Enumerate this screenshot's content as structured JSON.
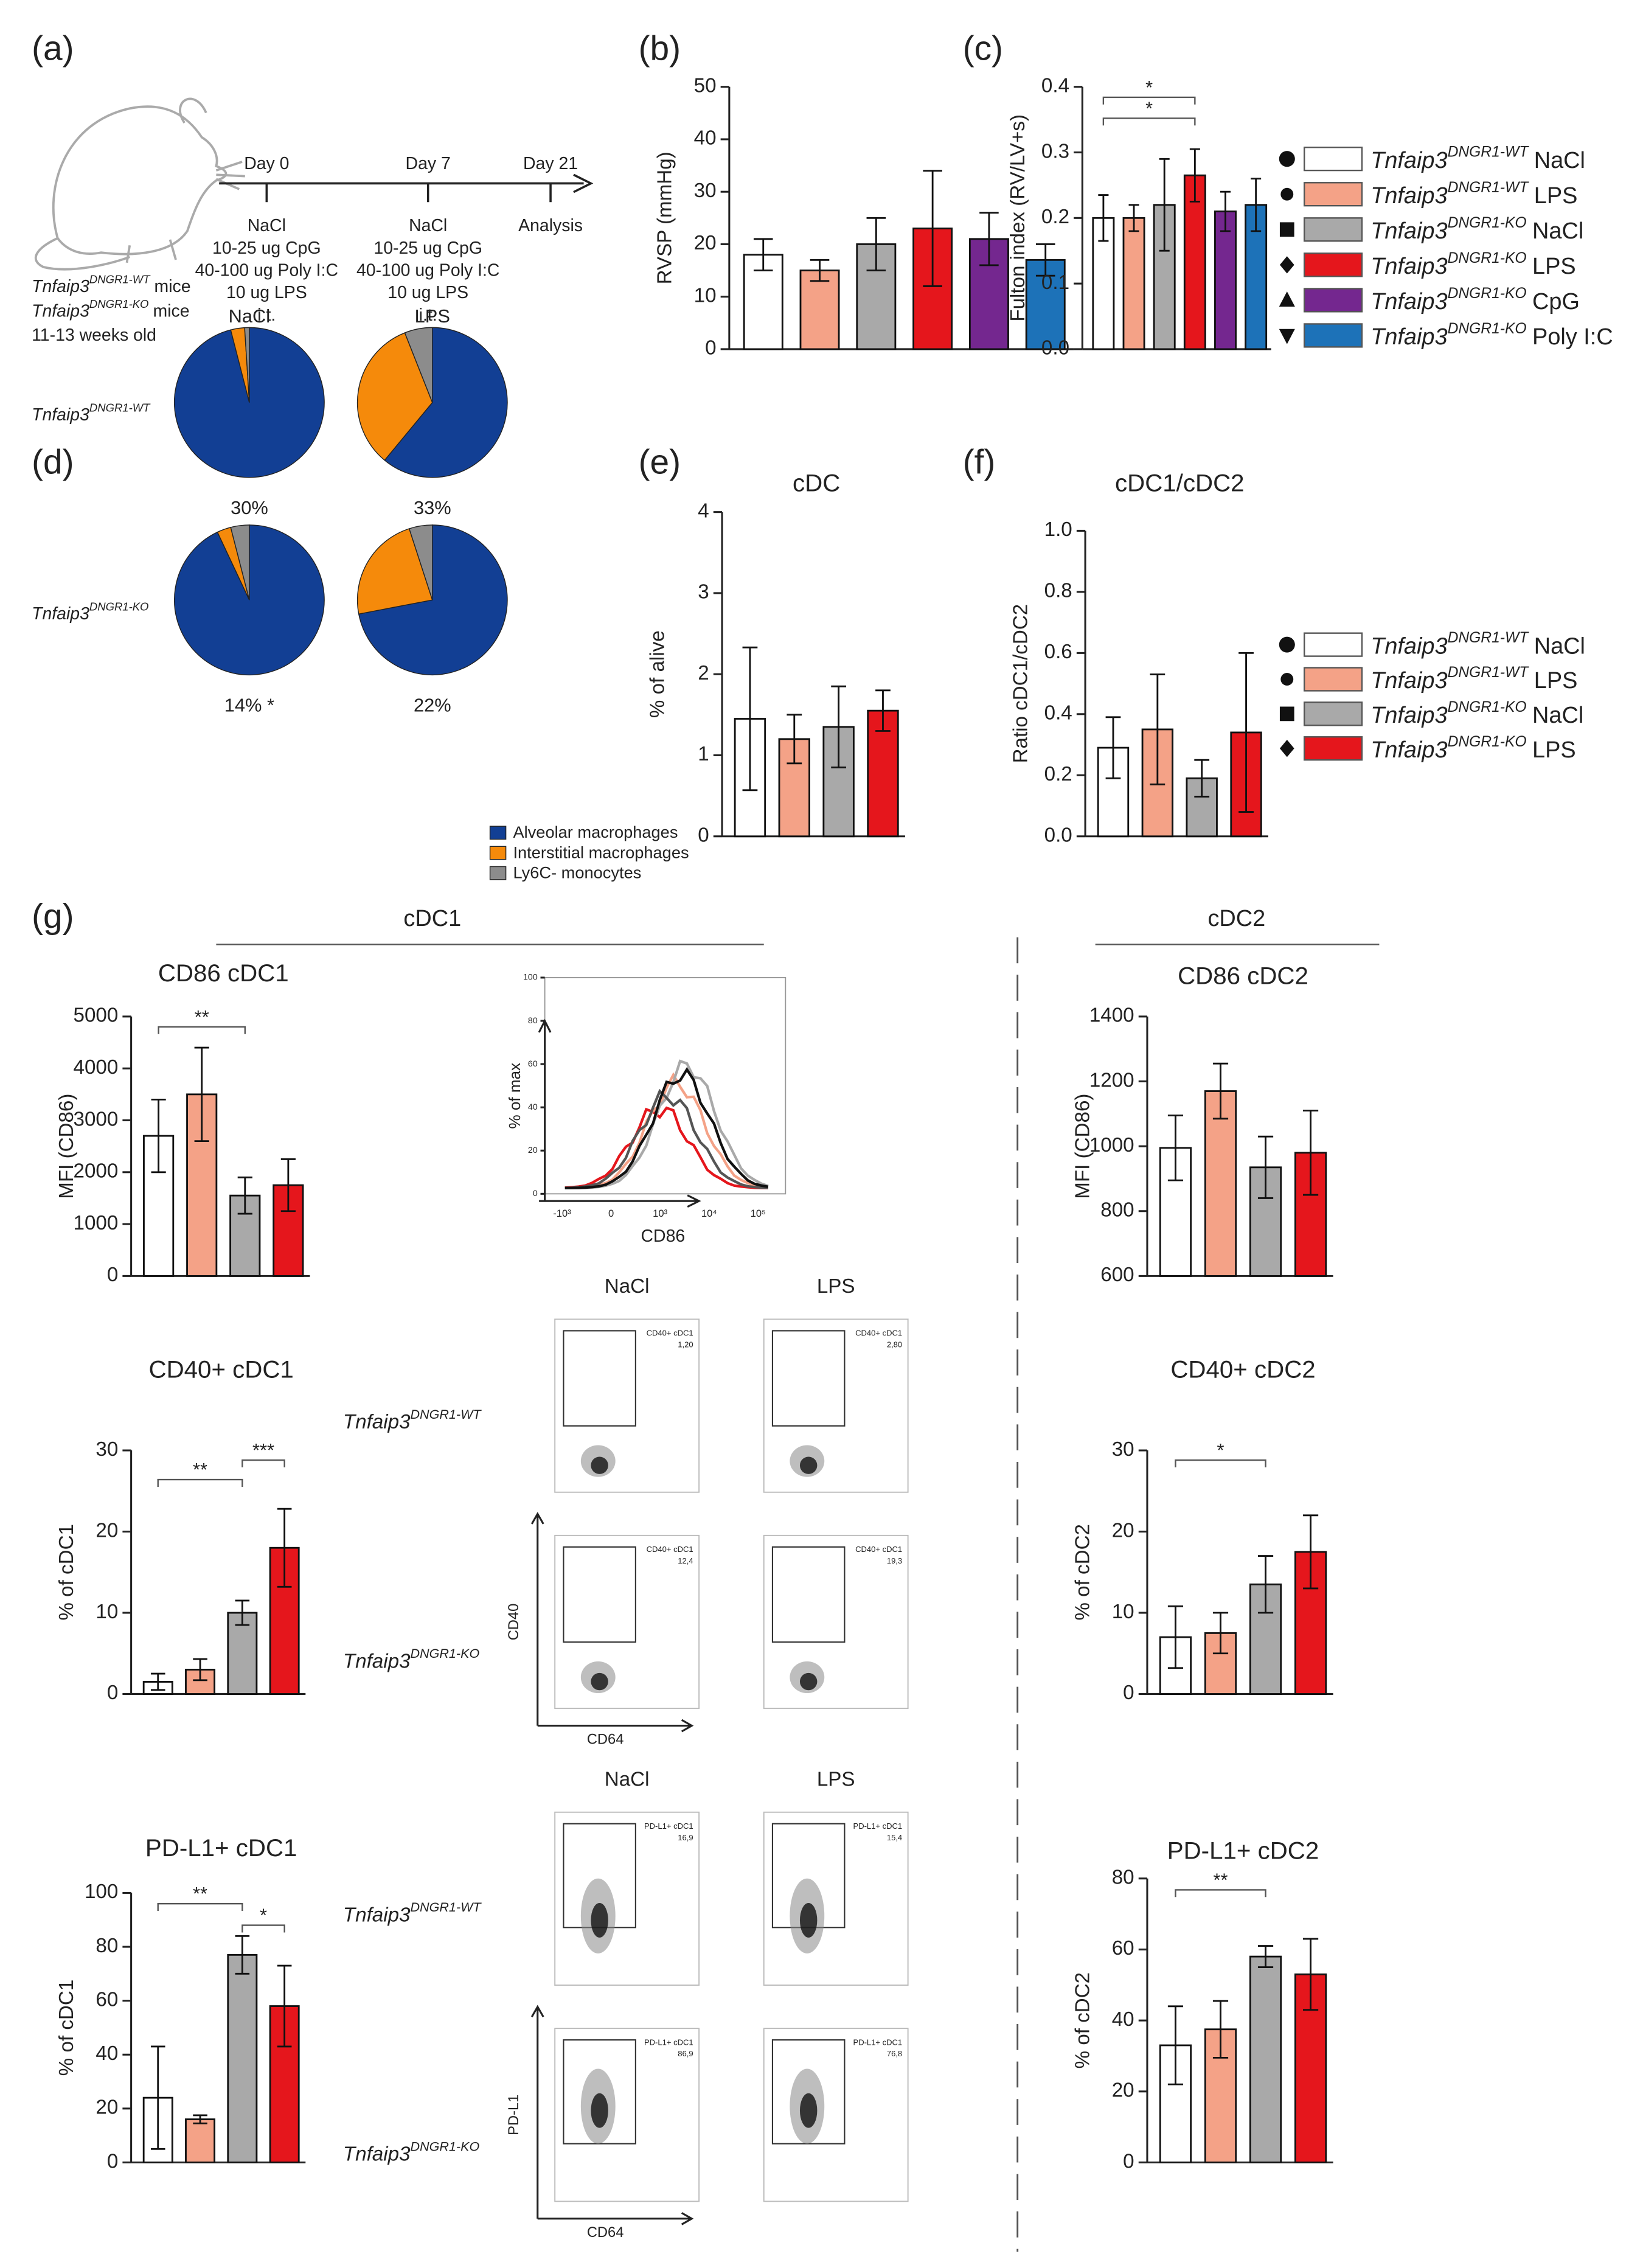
{
  "panel_labels": [
    "(a)",
    "(b)",
    "(c)",
    "(d)",
    "(e)",
    "(f)",
    "(g)"
  ],
  "genotypes": [
    {
      "gene": "Tnfaip3",
      "sup": "DNGR1-WT"
    },
    {
      "gene": "Tnfaip3",
      "sup": "DNGR1-KO"
    }
  ],
  "groups": [
    {
      "genotype": 0,
      "condition": "NaCl",
      "color": "#ffffff",
      "marker": "circle"
    },
    {
      "genotype": 0,
      "condition": "LPS",
      "color": "#f4a287",
      "marker": "circle"
    },
    {
      "genotype": 1,
      "condition": "NaCl",
      "color": "#a9a9a9",
      "marker": "square"
    },
    {
      "genotype": 1,
      "condition": "LPS",
      "color": "#e5161c",
      "marker": "diamond"
    },
    {
      "genotype": 1,
      "condition": "CpG",
      "color": "#74278f",
      "marker": "triangle-up"
    },
    {
      "genotype": 1,
      "condition": "Poly I:C",
      "color": "#1d72b8",
      "marker": "triangle-down"
    }
  ],
  "schematic": {
    "days": [
      "Day 0",
      "Day 7",
      "Day 21"
    ],
    "treatments": [
      [
        "NaCl",
        "10-25 ug CpG",
        "40-100 ug Poly I:C",
        "10 ug LPS",
        "i.t."
      ],
      [
        "NaCl",
        "10-25 ug CpG",
        "40-100 ug Poly I:C",
        "10 ug LPS",
        "i.t."
      ]
    ],
    "analysis": "Analysis",
    "mice_suffix": "mice",
    "age": "11-13 weeks old"
  },
  "sections": [
    "cDC1",
    "cDC2"
  ],
  "chart_data": [
    {
      "type": "pie",
      "columns": [
        "NaCl",
        "LPS"
      ],
      "legend": [
        "Alveolar macrophages",
        "Interstitial macrophages",
        "Ly6C- monocytes"
      ],
      "colors": [
        "#123f94",
        "#f58a0b",
        "#8c8c8c"
      ],
      "pies": [
        {
          "values": [
            96,
            3,
            1
          ],
          "label": "30%"
        },
        {
          "values": [
            61,
            33,
            6
          ],
          "label": "33%"
        },
        {
          "values": [
            93,
            3,
            4
          ],
          "label": "14% *"
        },
        {
          "values": [
            72,
            23,
            5
          ],
          "label": "22%"
        }
      ]
    },
    {
      "type": "bar",
      "ylabel": "RVSP (mmHg)",
      "values": [
        18,
        15,
        20,
        23,
        21,
        17
      ],
      "errors": [
        3,
        2,
        5,
        11,
        5,
        3
      ],
      "colors": [
        "#ffffff",
        "#f4a287",
        "#a9a9a9",
        "#e5161c",
        "#74278f",
        "#1d72b8"
      ],
      "ylim": [
        0,
        50
      ],
      "yticks": [
        0,
        10,
        20,
        30,
        40,
        50
      ],
      "significance": []
    },
    {
      "type": "bar",
      "ylabel": "Fulton index (RV/LV+s)",
      "values": [
        0.2,
        0.2,
        0.22,
        0.265,
        0.21,
        0.22
      ],
      "errors": [
        0.035,
        0.02,
        0.07,
        0.04,
        0.03,
        0.04
      ],
      "colors": [
        "#ffffff",
        "#f4a287",
        "#a9a9a9",
        "#e5161c",
        "#74278f",
        "#1d72b8"
      ],
      "ylim": [
        0,
        0.4
      ],
      "yticks": [
        {
          "value": 0,
          "label": "0.0"
        },
        0.1,
        0.2,
        0.3,
        0.4
      ],
      "significance": [
        {
          "bars": [
            0,
            3
          ],
          "label": "*"
        },
        {
          "bars": [
            0,
            3
          ],
          "label": "*"
        }
      ]
    },
    {
      "type": "bar",
      "title": "cDC",
      "ylabel": "% of alive",
      "values": [
        1.45,
        1.2,
        1.35,
        1.55
      ],
      "errors": [
        0.88,
        0.3,
        0.5,
        0.25
      ],
      "colors": [
        "#ffffff",
        "#f4a287",
        "#a9a9a9",
        "#e5161c"
      ],
      "ylim": [
        0,
        4
      ],
      "yticks": [
        0,
        1,
        2,
        3,
        4
      ],
      "significance": []
    },
    {
      "type": "bar",
      "title": "cDC1/cDC2",
      "ylabel": "Ratio cDC1/cDC2",
      "values": [
        0.29,
        0.35,
        0.19,
        0.34
      ],
      "errors": [
        0.1,
        0.18,
        0.06,
        0.26
      ],
      "colors": [
        "#ffffff",
        "#f4a287",
        "#a9a9a9",
        "#e5161c"
      ],
      "ylim": [
        0,
        1
      ],
      "yticks": [
        {
          "value": 0,
          "label": "0.0"
        },
        0.2,
        0.4,
        0.6,
        0.8,
        {
          "value": 1,
          "label": "1.0"
        }
      ],
      "significance": []
    },
    {
      "type": "bar",
      "title": "CD86 cDC1",
      "ylabel": "MFI (CD86)",
      "values": [
        2700,
        3500,
        1550,
        1750
      ],
      "errors": [
        700,
        900,
        350,
        500
      ],
      "colors": [
        "#ffffff",
        "#f4a287",
        "#a9a9a9",
        "#e5161c"
      ],
      "ylim": [
        0,
        5000
      ],
      "yticks": [
        0,
        1000,
        2000,
        3000,
        4000,
        5000
      ],
      "significance": [
        {
          "bars": [
            0,
            2
          ],
          "label": "**"
        }
      ]
    },
    {
      "type": "bar",
      "title": "CD86 cDC2",
      "ylabel": "MFI (CD86)",
      "values": [
        995,
        1170,
        935,
        980
      ],
      "errors": [
        100,
        85,
        95,
        130
      ],
      "colors": [
        "#ffffff",
        "#f4a287",
        "#a9a9a9",
        "#e5161c"
      ],
      "ylim": [
        600,
        1400
      ],
      "yticks": [
        600,
        800,
        1000,
        1200,
        1400
      ],
      "significance": []
    },
    {
      "type": "bar",
      "title": "CD40+ cDC1",
      "ylabel": "% of cDC1",
      "values": [
        1.5,
        3,
        10,
        18
      ],
      "errors": [
        1,
        1.3,
        1.5,
        4.8
      ],
      "colors": [
        "#ffffff",
        "#f4a287",
        "#a9a9a9",
        "#e5161c"
      ],
      "ylim": [
        0,
        30
      ],
      "yticks": [
        0,
        10,
        20,
        30
      ],
      "significance": [
        {
          "bars": [
            2,
            3
          ],
          "label": "***"
        },
        {
          "bars": [
            0,
            2
          ],
          "label": "**"
        }
      ]
    },
    {
      "type": "bar",
      "title": "CD40+ cDC2",
      "ylabel": "% of cDC2",
      "values": [
        7,
        7.5,
        13.5,
        17.5
      ],
      "errors": [
        3.8,
        2.5,
        3.5,
        4.5
      ],
      "colors": [
        "#ffffff",
        "#f4a287",
        "#a9a9a9",
        "#e5161c"
      ],
      "ylim": [
        0,
        30
      ],
      "yticks": [
        0,
        10,
        20,
        30
      ],
      "significance": [
        {
          "bars": [
            0,
            2
          ],
          "label": "*"
        }
      ]
    },
    {
      "type": "bar",
      "title": "PD-L1+ cDC1",
      "ylabel": "% of cDC1",
      "values": [
        24,
        16,
        77,
        58
      ],
      "errors": [
        19,
        1.5,
        7,
        15
      ],
      "colors": [
        "#ffffff",
        "#f4a287",
        "#a9a9a9",
        "#e5161c"
      ],
      "ylim": [
        0,
        100
      ],
      "yticks": [
        0,
        20,
        40,
        60,
        80,
        100
      ],
      "significance": [
        {
          "bars": [
            0,
            2
          ],
          "label": "**"
        },
        {
          "bars": [
            2,
            3
          ],
          "label": "*"
        }
      ]
    },
    {
      "type": "bar",
      "title": "PD-L1+ cDC2",
      "ylabel": "% of cDC2",
      "values": [
        33,
        37.5,
        58,
        53
      ],
      "errors": [
        11,
        8,
        3,
        10
      ],
      "colors": [
        "#ffffff",
        "#f4a287",
        "#a9a9a9",
        "#e5161c"
      ],
      "ylim": [
        0,
        80
      ],
      "yticks": [
        0,
        20,
        40,
        60,
        80
      ],
      "significance": [
        {
          "bars": [
            0,
            2
          ],
          "label": "**"
        }
      ]
    }
  ],
  "flow": {
    "histogram": {
      "ylabel": "% of max",
      "xlabel": "CD86",
      "yticks": [
        0,
        20,
        40,
        60,
        80,
        100
      ],
      "xticks": [
        "-10³",
        "0",
        "10³",
        "10⁴",
        "10⁵"
      ]
    },
    "density": [
      {
        "columns": [
          "NaCl",
          "LPS"
        ],
        "ylabel": "CD40",
        "xlabel": "CD64",
        "gate": "CD40+ cDC1",
        "gate_values": [
          "1,20",
          "2,80",
          "12,4",
          "19,3"
        ]
      },
      {
        "columns": [
          "NaCl",
          "LPS"
        ],
        "ylabel": "PD-L1",
        "xlabel": "CD64",
        "gate": "PD-L1+ cDC1",
        "gate_values": [
          "16,9",
          "15,4",
          "86,9",
          "76,8"
        ]
      }
    ]
  }
}
